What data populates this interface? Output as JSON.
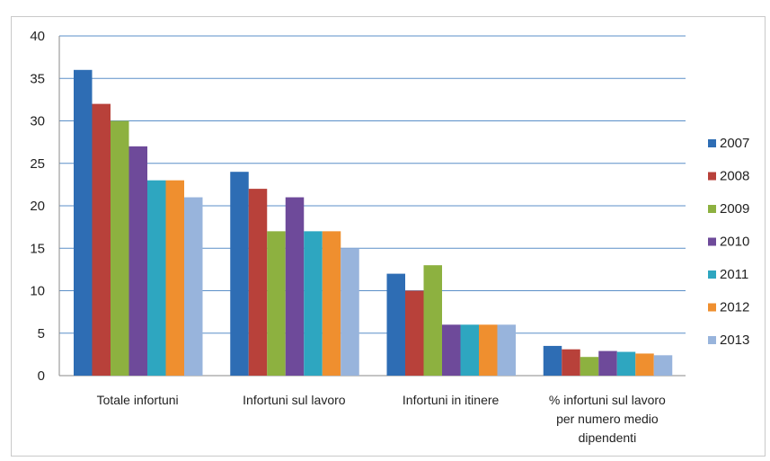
{
  "chart_data": {
    "type": "bar",
    "categories": [
      "Totale infortuni",
      "Infortuni sul lavoro",
      "Infortuni in itinere",
      "% infortuni sul lavoro per numero medio dipendenti"
    ],
    "category_lines": [
      [
        "Totale infortuni"
      ],
      [
        "Infortuni sul lavoro"
      ],
      [
        "Infortuni in itinere"
      ],
      [
        "% infortuni sul lavoro",
        "per numero medio",
        "dipendenti"
      ]
    ],
    "series": [
      {
        "name": "2007",
        "color": "#2e6db4",
        "values": [
          36,
          24,
          12,
          3.5
        ]
      },
      {
        "name": "2008",
        "color": "#b8413a",
        "values": [
          32,
          22,
          10,
          3.1
        ]
      },
      {
        "name": "2009",
        "color": "#8db140",
        "values": [
          30,
          17,
          13,
          2.2
        ]
      },
      {
        "name": "2010",
        "color": "#6e4a9a",
        "values": [
          27,
          21,
          6,
          2.9
        ]
      },
      {
        "name": "2011",
        "color": "#2ea6c0",
        "values": [
          23,
          17,
          6,
          2.8
        ]
      },
      {
        "name": "2012",
        "color": "#ef8f2f",
        "values": [
          23,
          17,
          6,
          2.6
        ]
      },
      {
        "name": "2013",
        "color": "#98b4dc",
        "values": [
          21,
          15,
          6,
          2.4
        ]
      }
    ],
    "ylim": [
      0,
      40
    ],
    "yticks": [
      0,
      5,
      10,
      15,
      20,
      25,
      30,
      35,
      40
    ],
    "grid": true,
    "legend_position": "right",
    "title": "",
    "xlabel": "",
    "ylabel": ""
  }
}
